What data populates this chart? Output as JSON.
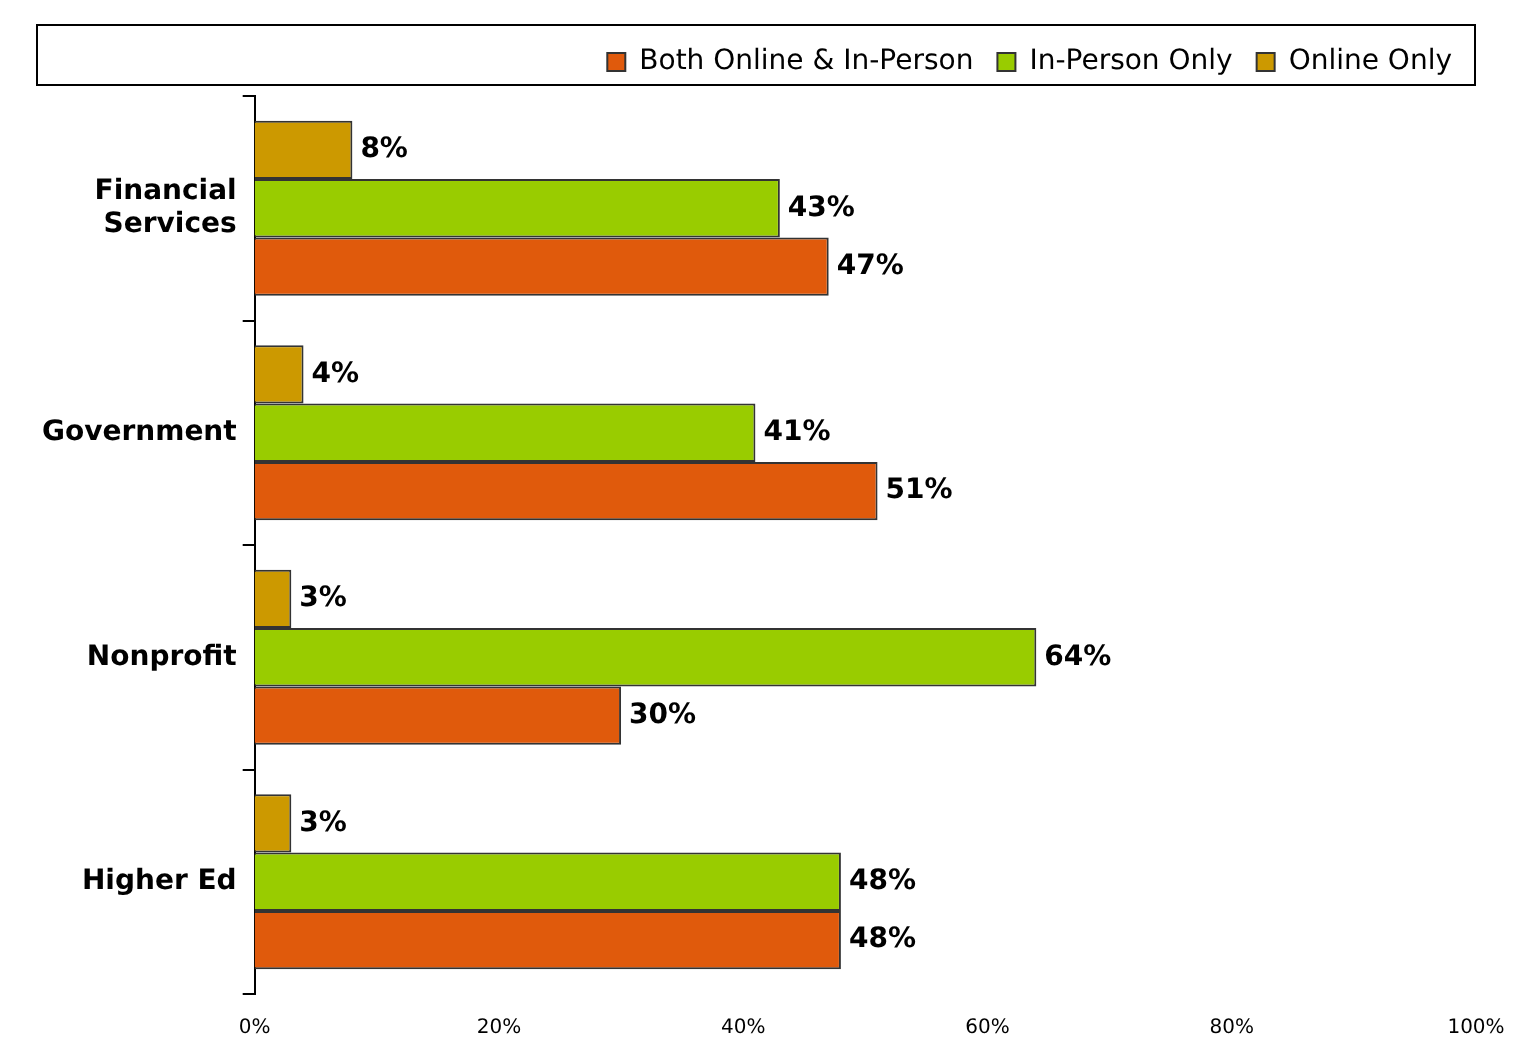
{
  "chart_data": {
    "type": "bar",
    "orientation": "horizontal",
    "categories": [
      "Financial Services",
      "Government",
      "Nonprofit",
      "Higher Ed"
    ],
    "series": [
      {
        "name": "Both Online & In-Person",
        "color": "#e05a0c",
        "values": [
          47,
          51,
          30,
          48
        ],
        "value_labels": [
          "47%",
          "51%",
          "30%",
          "48%"
        ]
      },
      {
        "name": "In-Person Only",
        "color": "#99cc00",
        "values": [
          43,
          41,
          64,
          48
        ],
        "value_labels": [
          "43%",
          "41%",
          "64%",
          "48%"
        ]
      },
      {
        "name": "Online Only",
        "color": "#cc9900",
        "values": [
          8,
          4,
          3,
          3
        ],
        "value_labels": [
          "8%",
          "4%",
          "3%",
          "3%"
        ]
      }
    ],
    "xlim": [
      0,
      100
    ],
    "xticks": [
      {
        "value": 0,
        "label": "0%"
      },
      {
        "value": 20,
        "label": "20%"
      },
      {
        "value": 40,
        "label": "40%"
      },
      {
        "value": 60,
        "label": "60%"
      },
      {
        "value": 80,
        "label": "80%"
      },
      {
        "value": 100,
        "label": "100%"
      }
    ],
    "grid": false,
    "legend": "top"
  }
}
